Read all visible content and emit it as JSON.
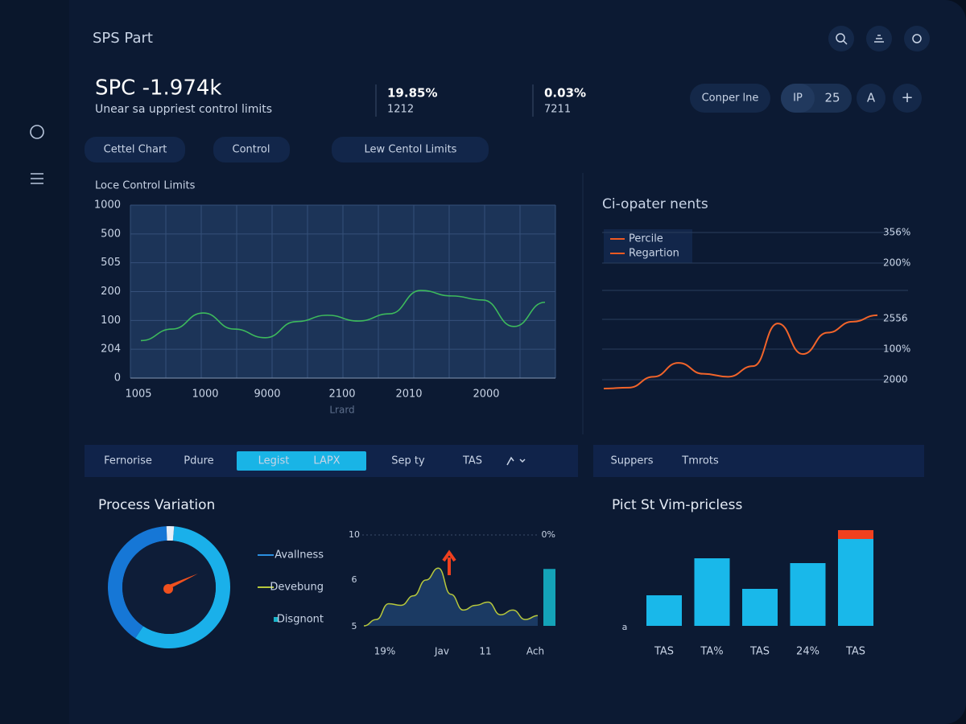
{
  "header": {
    "title": "SPS Part"
  },
  "kpi": {
    "title": "SPC -1.974k",
    "subtitle": "Unear sa uppriest control limits"
  },
  "stats": [
    {
      "value": "19.85%",
      "label": "1212"
    },
    {
      "value": "0.03%",
      "label": "7211"
    }
  ],
  "controls": {
    "compare": "Conper lne",
    "toggle": [
      "IP",
      "25"
    ],
    "user": "A",
    "add": "+"
  },
  "tabs": [
    "Cettel Chart",
    "Control",
    "Lew Centol Limits"
  ],
  "control_chart": {
    "type": "line",
    "title": "Loce Control Limits",
    "y_labels": [
      "1000",
      "500",
      "505",
      "200",
      "100",
      "204",
      "0"
    ],
    "x_labels": [
      "1005",
      "1000",
      "9000",
      "2100",
      "2010",
      "2000"
    ],
    "x_title": "Lrard",
    "color": "#3dba5c",
    "ylim": [
      0,
      6
    ],
    "values": [
      1.3,
      1.7,
      2.26,
      1.7,
      1.4,
      1.96,
      2.18,
      1.98,
      2.23,
      3.04,
      2.85,
      2.71,
      1.79,
      2.63
    ]
  },
  "trend_chart": {
    "type": "line",
    "title": "Ci-opater nents",
    "legend": [
      {
        "name": "Percile",
        "color": "#f05a22"
      },
      {
        "name": "Regartion",
        "color": "#f05a22"
      }
    ],
    "y_labels": [
      "356%",
      "200%",
      "2556",
      "100%",
      "2000"
    ],
    "color": "#f2642a",
    "ylim": [
      -0.5,
      5
    ],
    "values": [
      -0.3,
      -0.27,
      0.1,
      0.57,
      0.2,
      0.1,
      0.46,
      1.91,
      0.87,
      1.6,
      1.97,
      2.19
    ]
  },
  "filters": {
    "left": [
      "Fernorise",
      "Pdure",
      "Legist",
      "LAPX",
      "Sep ty",
      "TAS"
    ],
    "right": [
      "Suppers",
      "Tmrots"
    ]
  },
  "variation": {
    "type": "pie",
    "title": "Process Variation",
    "values": [
      58,
      40,
      2
    ],
    "colors": [
      "#1ab0ea",
      "#1677d6",
      "#e6eef8"
    ],
    "legend": [
      {
        "name": "Avallness",
        "color": "#2b8fe0"
      },
      {
        "name": "Devebung",
        "color": "#b7c83c"
      },
      {
        "name": "Disgnont",
        "color": "#19b3c9"
      }
    ]
  },
  "mini_chart": {
    "type": "area",
    "y_labels": [
      "10",
      "6",
      "5"
    ],
    "y2_label": "0%",
    "x_labels": [
      "19%",
      "Jav",
      "11",
      "Ach"
    ],
    "ylim": [
      0,
      115
    ],
    "color": "#b7c83c",
    "values": [
      0,
      8,
      28,
      26,
      38,
      58,
      73,
      40,
      20,
      26,
      30,
      14,
      20,
      8,
      13
    ],
    "bar_value": 72
  },
  "bar_chart": {
    "type": "bar",
    "title": "Pict St Vim-pricless",
    "y_label": "a",
    "categories": [
      "TAS",
      "TA%",
      "TAS",
      "24%",
      "TAS"
    ],
    "ylim": [
      0,
      125
    ],
    "series": [
      {
        "color": "#19b8ea",
        "values": [
          38,
          84,
          46,
          78,
          108
        ]
      },
      {
        "color": "#f0401e",
        "values": [
          null,
          null,
          null,
          null,
          11
        ]
      }
    ]
  }
}
